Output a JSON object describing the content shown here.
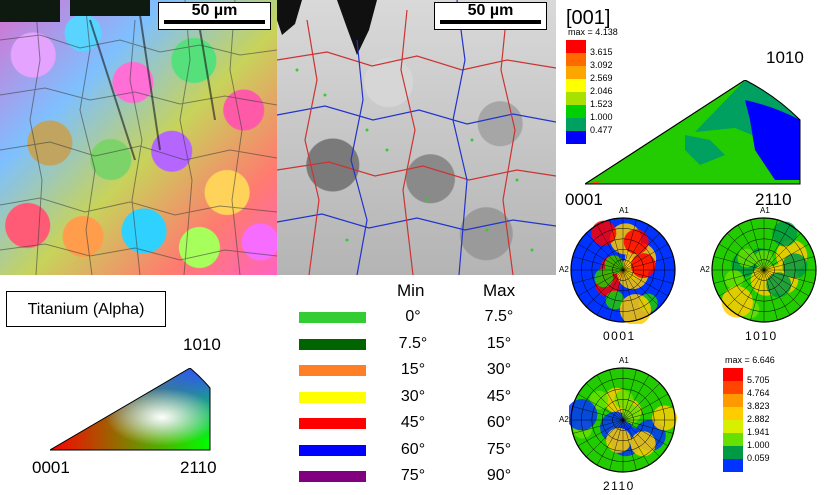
{
  "ipf_map": {
    "scale_bar": "50 µm"
  },
  "gb_map": {
    "scale_bar": "50 µm"
  },
  "top_right": {
    "title": "[001]",
    "scale": {
      "max_label": "max = 4.138",
      "levels": [
        "3.615",
        "3.092",
        "2.569",
        "2.046",
        "1.523",
        "1.000",
        "0.477"
      ],
      "colors": [
        "#ff0000",
        "#ff6a00",
        "#ffa500",
        "#ffff00",
        "#a8e000",
        "#00d000",
        "#00a060",
        "#0000ff"
      ]
    },
    "ipf_corners": {
      "top": "1010",
      "left": "0001",
      "right": "2110"
    }
  },
  "material": {
    "name": "Titanium (Alpha)"
  },
  "color_key": {
    "top": "1010",
    "left": "0001",
    "right": "2110"
  },
  "misorientation": {
    "header_min": "Min",
    "header_max": "Max",
    "rows": [
      {
        "color": "#33cc33",
        "min": "0°",
        "max": "7.5°"
      },
      {
        "color": "#006400",
        "min": "7.5°",
        "max": "15°"
      },
      {
        "color": "#ff7f27",
        "min": "15°",
        "max": "30°"
      },
      {
        "color": "#ffff00",
        "min": "30°",
        "max": "45°"
      },
      {
        "color": "#ff0000",
        "min": "45°",
        "max": "60°"
      },
      {
        "color": "#0000ff",
        "min": "60°",
        "max": "75°"
      },
      {
        "color": "#800080",
        "min": "75°",
        "max": "90°"
      }
    ]
  },
  "pole_figures": {
    "axis_a1": "A1",
    "axis_a2": "A2",
    "labels": [
      "0001",
      "1010",
      "2110"
    ]
  },
  "pf_scale": {
    "max_label": "max = 6.646",
    "levels": [
      "5.705",
      "4.764",
      "3.823",
      "2.882",
      "1.941",
      "1.000",
      "0.059"
    ],
    "colors": [
      "#ff0000",
      "#ff4500",
      "#ff9900",
      "#ffcc00",
      "#d6f000",
      "#66e000",
      "#009944",
      "#0033ff"
    ]
  }
}
